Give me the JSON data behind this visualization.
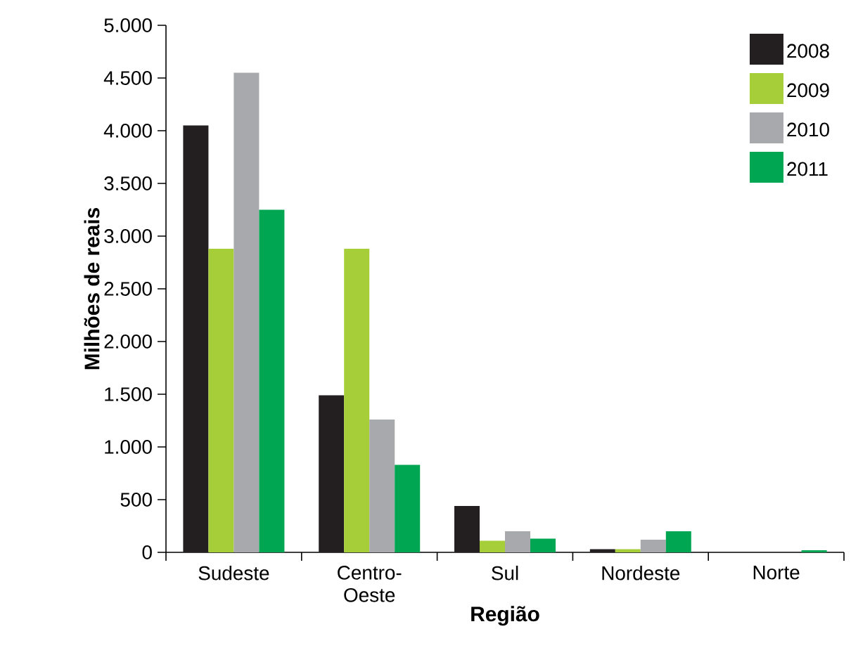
{
  "chart_data": {
    "type": "bar",
    "xlabel": "Região",
    "ylabel": "Milhões de reais",
    "categories": [
      "Sudeste",
      "Centro-Oeste",
      "Sul",
      "Nordeste",
      "Norte"
    ],
    "series": [
      {
        "name": "2008",
        "color": "#231f20",
        "values": [
          4050,
          1490,
          440,
          30,
          0
        ]
      },
      {
        "name": "2009",
        "color": "#a6ce39",
        "values": [
          2880,
          2880,
          110,
          30,
          0
        ]
      },
      {
        "name": "2010",
        "color": "#a7a9ac",
        "values": [
          4550,
          1260,
          200,
          120,
          0
        ]
      },
      {
        "name": "2011",
        "color": "#00a651",
        "values": [
          3250,
          830,
          130,
          200,
          20
        ]
      }
    ],
    "ylim": [
      0,
      5000
    ],
    "yticks": [
      {
        "value": 0,
        "label": "0"
      },
      {
        "value": 500,
        "label": "500"
      },
      {
        "value": 1000,
        "label": "1.000"
      },
      {
        "value": 1500,
        "label": "1.500"
      },
      {
        "value": 2000,
        "label": "2.000"
      },
      {
        "value": 2500,
        "label": "2.500"
      },
      {
        "value": 3000,
        "label": "3.000"
      },
      {
        "value": 3500,
        "label": "3.500"
      },
      {
        "value": 4000,
        "label": "4.000"
      },
      {
        "value": 4500,
        "label": "4.500"
      },
      {
        "value": 5000,
        "label": "5.000"
      }
    ],
    "legend": "top right",
    "grid": false
  }
}
